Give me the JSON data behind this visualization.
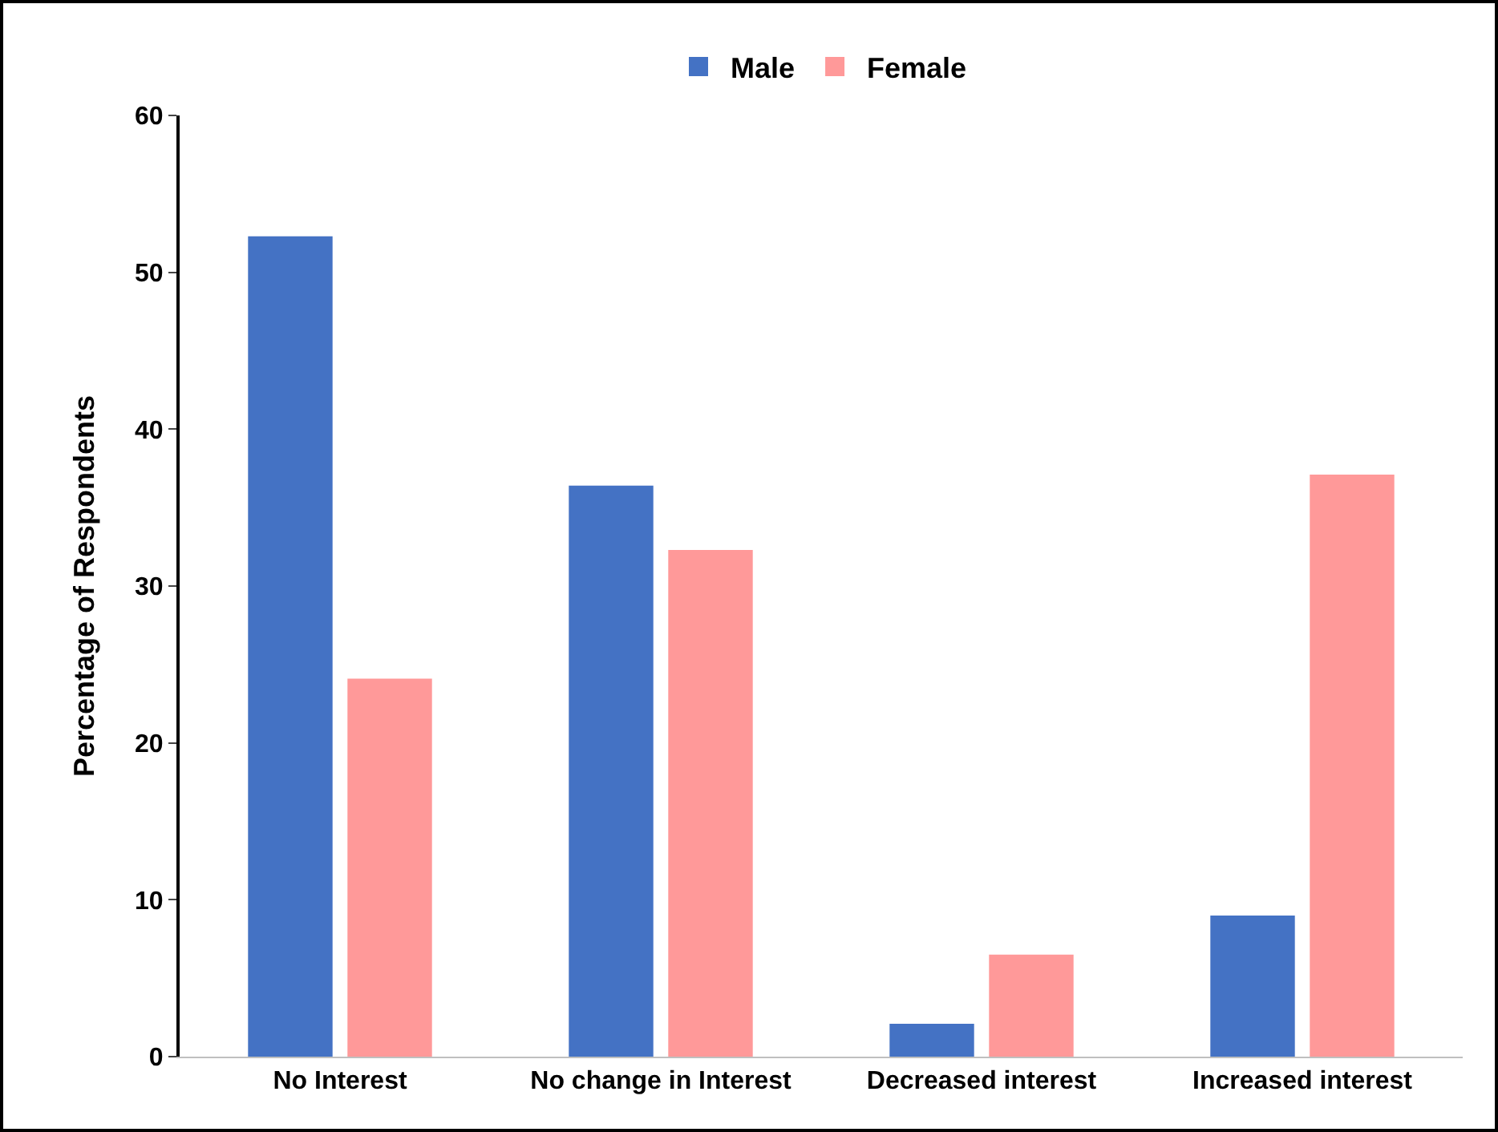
{
  "chart_data": {
    "type": "bar",
    "ylabel": "Percentage of Respondents",
    "categories": [
      "No Interest",
      "No change in Interest",
      "Decreased interest",
      "Increased interest"
    ],
    "series": [
      {
        "name": "Male",
        "color": "#4472c4",
        "values": [
          52.3,
          36.4,
          2.1,
          9.0
        ]
      },
      {
        "name": "Female",
        "color": "#ff9999",
        "values": [
          24.1,
          32.3,
          6.5,
          37.1
        ]
      }
    ],
    "ylim": [
      0,
      60
    ],
    "yticks": [
      0,
      10,
      20,
      30,
      40,
      50,
      60
    ],
    "grid": false,
    "legend": "top"
  }
}
